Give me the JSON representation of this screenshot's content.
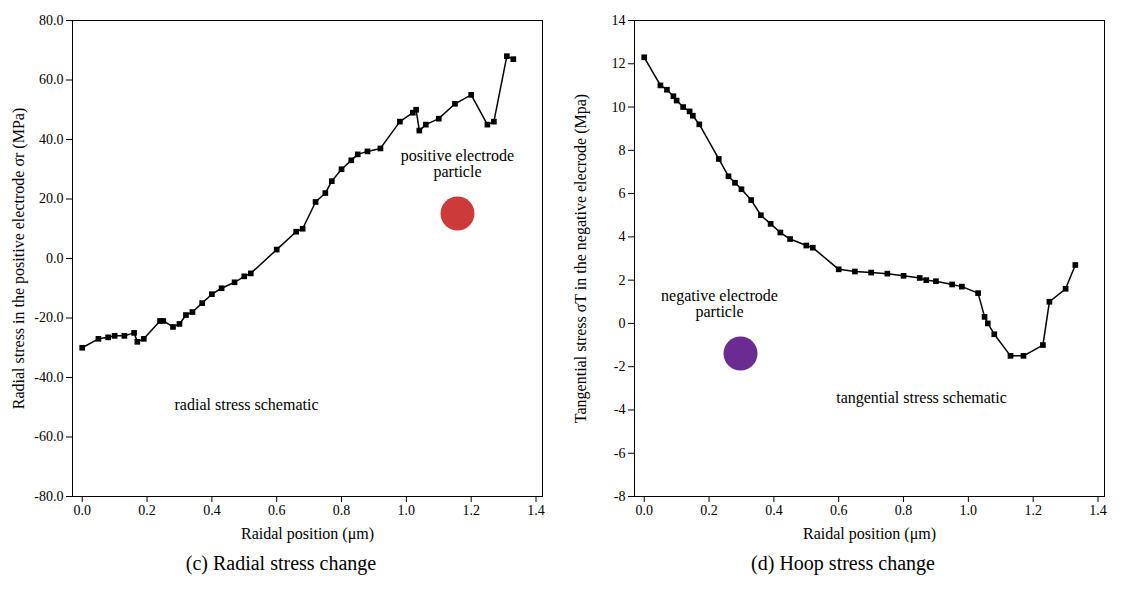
{
  "chart_data": [
    {
      "type": "line",
      "caption": "(c) Radial stress change",
      "x_label": "Raidal position (μm)",
      "y_label": "Radial stress in the positive electrode σr (MPa)",
      "color": "#000000",
      "marker": "square",
      "x": [
        0,
        0.05,
        0.08,
        0.1,
        0.13,
        0.16,
        0.17,
        0.19,
        0.24,
        0.25,
        0.28,
        0.3,
        0.32,
        0.34,
        0.37,
        0.4,
        0.43,
        0.47,
        0.5,
        0.52,
        0.6,
        0.66,
        0.68,
        0.72,
        0.75,
        0.77,
        0.8,
        0.83,
        0.85,
        0.88,
        0.92,
        0.98,
        1.02,
        1.03,
        1.04,
        1.06,
        1.1,
        1.15,
        1.2,
        1.25,
        1.27,
        1.31,
        1.33
      ],
      "values": [
        -30,
        -27,
        -26.5,
        -26,
        -26,
        -25,
        -28,
        -27,
        -21,
        -21,
        -23,
        -22,
        -19,
        -18,
        -15,
        -12,
        -10,
        -8,
        -6,
        -5,
        3,
        9,
        10,
        19,
        22,
        26,
        30,
        33,
        35,
        36,
        37,
        46,
        49,
        50,
        43,
        45,
        47,
        52,
        55,
        45,
        46,
        68,
        67
      ],
      "xlim": [
        -0.03,
        1.42
      ],
      "xticks": [
        {
          "value": 0,
          "label": "0.0"
        },
        0.2,
        0.4,
        0.6,
        0.8,
        {
          "value": 1,
          "label": "1.0"
        },
        1.2,
        1.4
      ],
      "ylim": [
        -80,
        80
      ],
      "yticks": [
        {
          "value": -80,
          "label": "-80.0"
        },
        {
          "value": -60,
          "label": "-60.0"
        },
        {
          "value": -40,
          "label": "-40.0"
        },
        {
          "value": -20,
          "label": "-20.0"
        },
        {
          "value": 0,
          "label": "0.0"
        },
        {
          "value": 20,
          "label": "20.0"
        },
        {
          "value": 40,
          "label": "40.0"
        },
        {
          "value": 60,
          "label": "60.0"
        },
        {
          "value": 80,
          "label": "80.0"
        }
      ],
      "annotations": [
        {
          "text": "positive electrode particle",
          "color": "#cc3a3a"
        },
        {
          "text": "radial stress schematic"
        }
      ]
    },
    {
      "type": "line",
      "caption": "(d) Hoop stress change",
      "x_label": "Raidal position (μm)",
      "y_label": "Tangential stress σT in the negative elecrode (Mpa)",
      "color": "#000000",
      "marker": "square",
      "x": [
        0,
        0.05,
        0.07,
        0.09,
        0.1,
        0.12,
        0.14,
        0.15,
        0.17,
        0.23,
        0.26,
        0.28,
        0.3,
        0.33,
        0.36,
        0.39,
        0.42,
        0.45,
        0.5,
        0.52,
        0.6,
        0.65,
        0.7,
        0.75,
        0.8,
        0.85,
        0.87,
        0.9,
        0.95,
        0.98,
        1.03,
        1.05,
        1.06,
        1.08,
        1.13,
        1.17,
        1.23,
        1.25,
        1.3,
        1.33
      ],
      "values": [
        12.3,
        11,
        10.8,
        10.5,
        10.3,
        10,
        9.8,
        9.6,
        9.2,
        7.6,
        6.8,
        6.5,
        6.2,
        5.7,
        5.0,
        4.6,
        4.2,
        3.9,
        3.6,
        3.5,
        2.5,
        2.4,
        2.35,
        2.3,
        2.2,
        2.1,
        2.0,
        1.95,
        1.8,
        1.7,
        1.4,
        0.3,
        0,
        -0.5,
        -1.5,
        -1.5,
        -1,
        1,
        1.6,
        2.7
      ],
      "xlim": [
        -0.03,
        1.42
      ],
      "xticks": [
        {
          "value": 0,
          "label": "0.0"
        },
        0.2,
        0.4,
        0.6,
        0.8,
        {
          "value": 1,
          "label": "1.0"
        },
        1.2,
        1.4
      ],
      "ylim": [
        -8,
        14
      ],
      "yticks": [
        -8,
        -6,
        -4,
        -2,
        0,
        2,
        4,
        6,
        8,
        10,
        12,
        14
      ],
      "annotations": [
        {
          "text": "negative electrode particle",
          "color": "#6a2c91"
        },
        {
          "text": "tangential stress schematic"
        }
      ]
    }
  ]
}
